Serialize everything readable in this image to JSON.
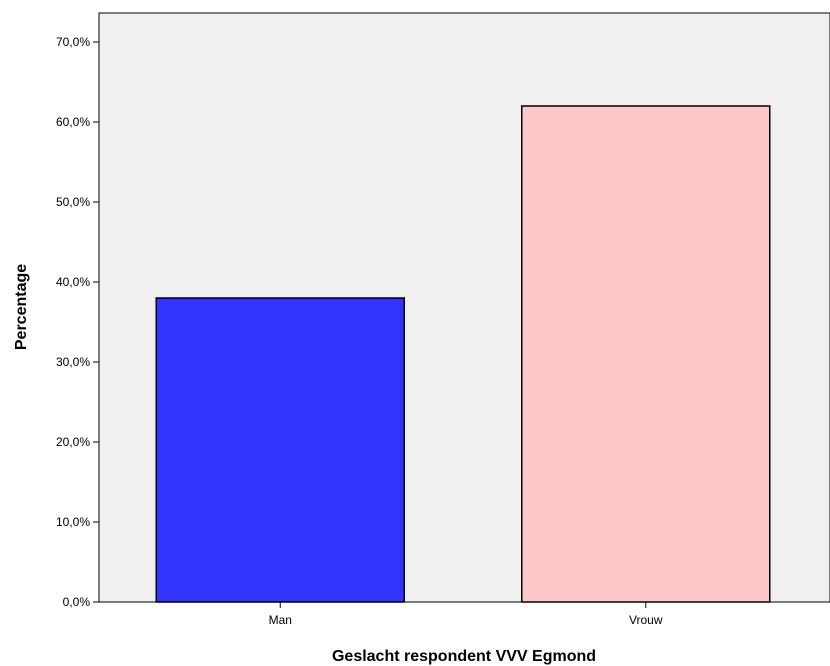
{
  "chart_data": {
    "type": "bar",
    "categories": [
      "Man",
      "Vrouw"
    ],
    "values": [
      38.0,
      62.0
    ],
    "xlabel": "Geslacht respondent VVV Egmond",
    "ylabel": "Percentage",
    "ylim": [
      0,
      75
    ],
    "yticks": [
      0,
      10,
      20,
      30,
      40,
      50,
      60,
      70
    ],
    "ytick_labels": [
      "0,0%",
      "10,0%",
      "20,0%",
      "30,0%",
      "40,0%",
      "50,0%",
      "60,0%",
      "70,0%"
    ],
    "grid": false,
    "legend": "none",
    "colors": {
      "Man": "#3333ff",
      "Vrouw": "#ffc8c8",
      "plot_background": "#f0f0f0",
      "outline": "#000000"
    }
  }
}
